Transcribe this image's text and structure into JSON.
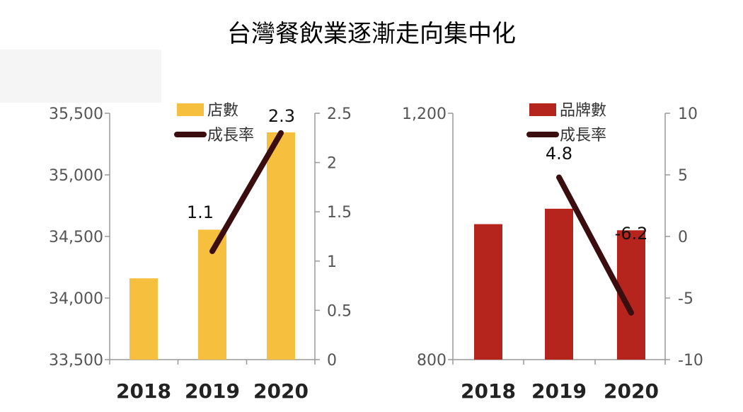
{
  "title": "台灣餐飲業逐漸走向集中化",
  "chart_data": [
    {
      "type": "bar",
      "categories": [
        "2018",
        "2019",
        "2020"
      ],
      "series": [
        {
          "name": "店數",
          "axis": "left",
          "values": [
            34160,
            34555,
            35345
          ],
          "color": "#F6BF3E"
        },
        {
          "name": "成長率",
          "axis": "right",
          "kind": "line",
          "values": [
            null,
            1.1,
            2.3
          ],
          "color": "#3A0E0E"
        }
      ],
      "data_labels": [
        "1.1",
        "2.3"
      ],
      "y_left": {
        "min": 33500,
        "max": 35500,
        "ticks": [
          "33,500",
          "34,000",
          "34,500",
          "35,000",
          "35,500"
        ]
      },
      "y_right": {
        "min": 0,
        "max": 2.5,
        "ticks": [
          "0",
          "0.5",
          "1",
          "1.5",
          "2",
          "2.5"
        ]
      },
      "legend": [
        "店數",
        "成長率"
      ]
    },
    {
      "type": "bar",
      "categories": [
        "2018",
        "2019",
        "2020"
      ],
      "series": [
        {
          "name": "品牌數",
          "axis": "left",
          "values": [
            1020,
            1045,
            1010
          ],
          "color": "#B5251D"
        },
        {
          "name": "成長率",
          "axis": "right",
          "kind": "line",
          "values": [
            null,
            4.8,
            -6.2
          ],
          "color": "#3A0E0E"
        }
      ],
      "data_labels": [
        "4.8",
        "-6.2"
      ],
      "y_left": {
        "min": 800,
        "max": 1200,
        "ticks": [
          "800",
          "1,200"
        ]
      },
      "y_right": {
        "min": -10,
        "max": 10,
        "ticks": [
          "-10",
          "-5",
          "0",
          "5",
          "10"
        ]
      },
      "legend": [
        "品牌數",
        "成長率"
      ]
    }
  ]
}
